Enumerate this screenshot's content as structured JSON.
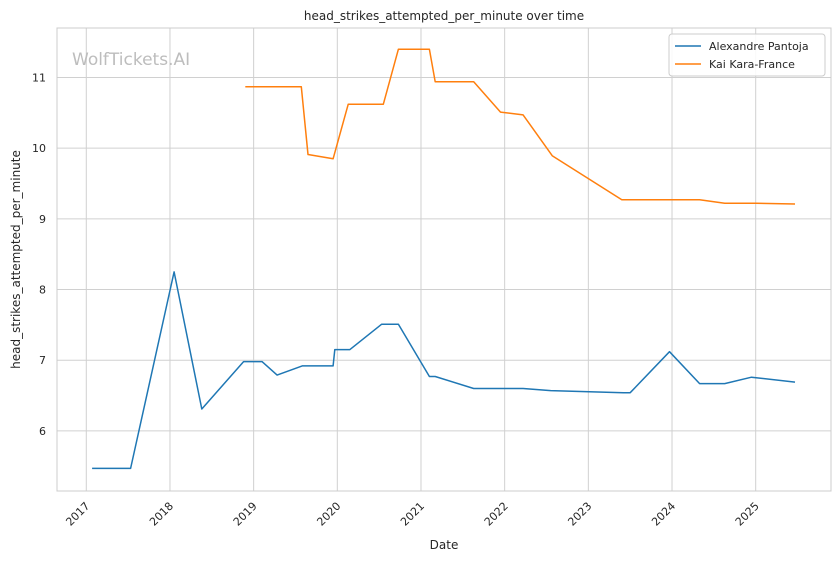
{
  "chart_data": {
    "type": "line",
    "title": "head_strikes_attempted_per_minute over time",
    "xlabel": "Date",
    "ylabel": "head_strikes_attempted_per_minute",
    "watermark": "WolfTickets.AI",
    "grid": true,
    "legend_position": "top-right",
    "xlim": [
      2016.65,
      2025.9
    ],
    "ylim": [
      5.15,
      11.7
    ],
    "x_ticks": [
      "2017",
      "2018",
      "2019",
      "2020",
      "2021",
      "2022",
      "2023",
      "2024",
      "2025"
    ],
    "y_ticks": [
      6,
      7,
      8,
      9,
      10,
      11
    ],
    "series": [
      {
        "name": "Alexandre Pantoja",
        "color": "#1f77b4",
        "points": [
          {
            "x": 2017.07,
            "y": 5.47
          },
          {
            "x": 2017.53,
            "y": 5.47
          },
          {
            "x": 2018.05,
            "y": 8.25
          },
          {
            "x": 2018.38,
            "y": 6.31
          },
          {
            "x": 2018.88,
            "y": 6.98
          },
          {
            "x": 2019.1,
            "y": 6.98
          },
          {
            "x": 2019.28,
            "y": 6.79
          },
          {
            "x": 2019.58,
            "y": 6.92
          },
          {
            "x": 2019.95,
            "y": 6.92
          },
          {
            "x": 2019.97,
            "y": 7.15
          },
          {
            "x": 2020.15,
            "y": 7.15
          },
          {
            "x": 2020.53,
            "y": 7.51
          },
          {
            "x": 2020.73,
            "y": 7.51
          },
          {
            "x": 2021.1,
            "y": 6.77
          },
          {
            "x": 2021.17,
            "y": 6.77
          },
          {
            "x": 2021.63,
            "y": 6.6
          },
          {
            "x": 2022.22,
            "y": 6.6
          },
          {
            "x": 2022.55,
            "y": 6.57
          },
          {
            "x": 2023.42,
            "y": 6.54
          },
          {
            "x": 2023.5,
            "y": 6.54
          },
          {
            "x": 2023.97,
            "y": 7.12
          },
          {
            "x": 2024.33,
            "y": 6.67
          },
          {
            "x": 2024.63,
            "y": 6.67
          },
          {
            "x": 2024.95,
            "y": 6.76
          },
          {
            "x": 2025.47,
            "y": 6.69
          }
        ]
      },
      {
        "name": "Kai Kara-France",
        "color": "#ff7f0e",
        "points": [
          {
            "x": 2018.9,
            "y": 10.87
          },
          {
            "x": 2019.57,
            "y": 10.87
          },
          {
            "x": 2019.65,
            "y": 9.91
          },
          {
            "x": 2019.95,
            "y": 9.85
          },
          {
            "x": 2020.13,
            "y": 10.62
          },
          {
            "x": 2020.55,
            "y": 10.62
          },
          {
            "x": 2020.73,
            "y": 11.4
          },
          {
            "x": 2021.1,
            "y": 11.4
          },
          {
            "x": 2021.17,
            "y": 10.94
          },
          {
            "x": 2021.63,
            "y": 10.94
          },
          {
            "x": 2021.95,
            "y": 10.51
          },
          {
            "x": 2022.22,
            "y": 10.47
          },
          {
            "x": 2022.57,
            "y": 9.89
          },
          {
            "x": 2023.4,
            "y": 9.27
          },
          {
            "x": 2024.33,
            "y": 9.27
          },
          {
            "x": 2024.63,
            "y": 9.22
          },
          {
            "x": 2025.0,
            "y": 9.22
          },
          {
            "x": 2025.47,
            "y": 9.21
          }
        ]
      }
    ]
  }
}
